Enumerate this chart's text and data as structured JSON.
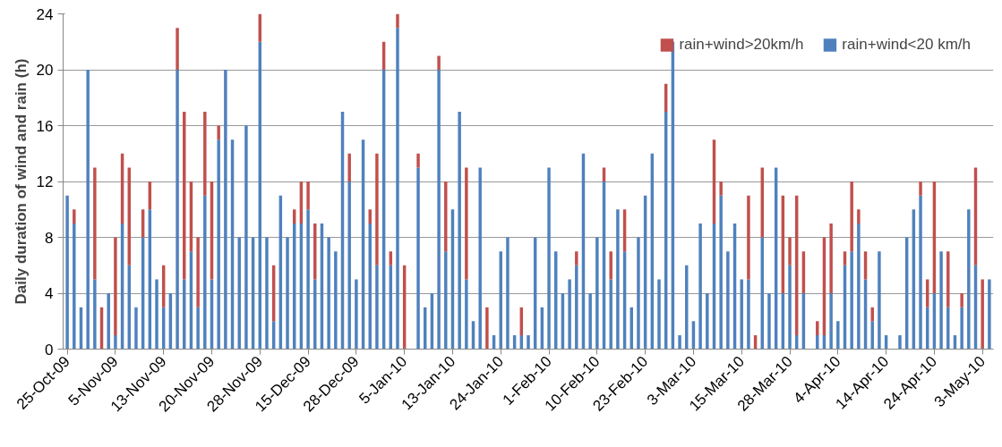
{
  "chart_data": {
    "type": "bar",
    "stacked": true,
    "ylabel": "Daily duration of wind and rain (h)",
    "categories": [
      "25-Oct-09",
      null,
      null,
      null,
      null,
      null,
      null,
      "5-Nov-09",
      null,
      null,
      null,
      null,
      null,
      null,
      "13-Nov-09",
      null,
      null,
      null,
      null,
      null,
      null,
      "20-Nov-09",
      null,
      null,
      null,
      null,
      null,
      null,
      "28-Nov-09",
      null,
      null,
      null,
      null,
      null,
      null,
      "15-Dec-09",
      null,
      null,
      null,
      null,
      null,
      null,
      "28-Dec-09",
      null,
      null,
      null,
      null,
      null,
      null,
      "5-Jan-10",
      null,
      null,
      null,
      null,
      null,
      null,
      "13-Jan-10",
      null,
      null,
      null,
      null,
      null,
      null,
      "24-Jan-10",
      null,
      null,
      null,
      null,
      null,
      null,
      "1-Feb-10",
      null,
      null,
      null,
      null,
      null,
      null,
      "10-Feb-10",
      null,
      null,
      null,
      null,
      null,
      null,
      "23-Feb-10",
      null,
      null,
      null,
      null,
      null,
      null,
      "3-Mar-10",
      null,
      null,
      null,
      null,
      null,
      null,
      "15-Mar-10",
      null,
      null,
      null,
      null,
      null,
      null,
      "28-Mar-10",
      null,
      null,
      null,
      null,
      null,
      null,
      "4-Apr-10",
      null,
      null,
      null,
      null,
      null,
      null,
      "14-Apr-10",
      null,
      null,
      null,
      null,
      null,
      null,
      "24-Apr-10",
      null,
      null,
      null,
      null,
      null,
      null,
      "3-May-10",
      null
    ],
    "series": [
      {
        "name": "rain+wind<20 km/h",
        "color": "#4f81bd",
        "values": [
          11,
          9,
          3,
          20,
          5,
          0,
          4,
          1,
          9,
          6,
          3,
          8,
          10,
          5,
          3,
          4,
          20,
          5,
          7,
          3,
          11,
          5,
          15,
          20,
          15,
          8,
          16,
          8,
          22,
          8,
          2,
          11,
          8,
          9,
          9,
          10,
          5,
          9,
          8,
          7,
          17,
          12,
          5,
          15,
          9,
          6,
          20,
          6,
          23,
          0,
          0,
          13,
          3,
          4,
          20,
          7,
          10,
          17,
          5,
          2,
          13,
          0,
          1,
          7,
          8,
          1,
          1,
          1,
          8,
          3,
          13,
          7,
          4,
          5,
          6,
          14,
          4,
          8,
          12,
          5,
          10,
          7,
          3,
          8,
          11,
          14,
          5,
          17,
          22,
          1,
          6,
          2,
          9,
          4,
          9,
          11,
          7,
          9,
          5,
          5,
          0,
          8,
          4,
          13,
          4,
          6,
          1,
          4,
          0,
          1,
          1,
          4,
          2,
          6,
          7,
          9,
          5,
          2,
          7,
          1,
          0,
          1,
          8,
          10,
          11,
          3,
          4,
          7,
          3,
          1,
          3,
          10,
          6,
          0,
          5
        ]
      },
      {
        "name": "rain+wind>20km/h",
        "color": "#c0504d",
        "values": [
          0,
          1,
          0,
          0,
          8,
          3,
          0,
          7,
          5,
          7,
          0,
          2,
          2,
          0,
          3,
          0,
          3,
          12,
          5,
          5,
          6,
          7,
          1,
          0,
          0,
          0,
          0,
          0,
          2,
          0,
          4,
          0,
          0,
          1,
          3,
          2,
          4,
          0,
          0,
          0,
          0,
          2,
          0,
          0,
          1,
          8,
          2,
          1,
          1,
          6,
          0,
          1,
          0,
          0,
          1,
          5,
          0,
          0,
          8,
          0,
          0,
          3,
          0,
          0,
          0,
          0,
          2,
          0,
          0,
          0,
          0,
          0,
          0,
          0,
          1,
          0,
          0,
          0,
          1,
          2,
          0,
          3,
          0,
          0,
          0,
          0,
          0,
          2,
          0,
          0,
          0,
          0,
          0,
          0,
          6,
          1,
          0,
          0,
          0,
          6,
          1,
          5,
          0,
          0,
          7,
          2,
          10,
          3,
          0,
          1,
          7,
          5,
          0,
          1,
          5,
          1,
          2,
          1,
          0,
          0,
          0,
          0,
          0,
          0,
          1,
          2,
          8,
          0,
          4,
          0,
          1,
          0,
          7,
          5,
          0
        ]
      }
    ],
    "ylim": [
      0,
      24
    ],
    "yticks": [
      0,
      4,
      8,
      12,
      16,
      20,
      24
    ],
    "grid": "y",
    "legend": "top right"
  }
}
